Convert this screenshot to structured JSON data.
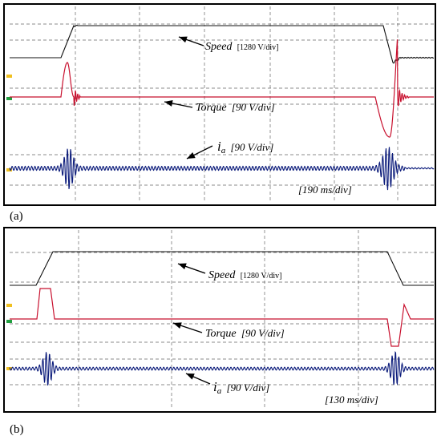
{
  "chart_data": [
    {
      "type": "line",
      "panel_label": "(a)",
      "time_scale_label": "[190 ms/div]",
      "colors": {
        "speed": "#111111",
        "torque": "#c8102e",
        "current": "#0a1a7a",
        "ref_speed": "#f0c020",
        "ref_torque": "#f0c020",
        "ref_current": "#20a040"
      },
      "series": [
        {
          "key": "speed",
          "name_text": "Speed",
          "scale_text": "[1280 V/div]",
          "y_data": [
            0,
            0,
            0.82,
            0.82,
            0.82,
            0.82,
            -0.05,
            0
          ]
        },
        {
          "key": "torque",
          "name_text": "Torque",
          "scale_text": "[90 V/div]",
          "y_data": [
            0,
            1.05,
            -0.45,
            0,
            0,
            -1.1,
            0.45,
            0
          ]
        },
        {
          "key": "current",
          "name_text": "i",
          "subscript_text": "a",
          "scale_text": "[90 V/div]",
          "y_data": [
            0.07,
            1.0,
            0.07,
            0.07,
            1.0,
            0.07
          ]
        }
      ]
    },
    {
      "type": "line",
      "panel_label": "(b)",
      "time_scale_label": "[130 ms/div]",
      "colors": {
        "speed": "#111111",
        "torque": "#c8102e",
        "current": "#0a1a7a",
        "ref_speed": "#f0c020",
        "ref_torque": "#20a040",
        "ref_current": "#f0c020"
      },
      "series": [
        {
          "key": "speed",
          "name_text": "Speed",
          "scale_text": "[1280 V/div]",
          "y_data": [
            0,
            0,
            1,
            1,
            0,
            0
          ]
        },
        {
          "key": "torque",
          "name_text": "Torque",
          "scale_text": "[90 V/div]",
          "y_data": [
            0,
            1,
            1,
            0,
            0,
            -0.7,
            0.35,
            0
          ]
        },
        {
          "key": "current",
          "name_text": "i",
          "subscript_text": "a",
          "scale_text": "[90 V/div]",
          "y_data": [
            0.05,
            1.0,
            0.05,
            0.05,
            1.0,
            0.05
          ]
        }
      ]
    }
  ]
}
